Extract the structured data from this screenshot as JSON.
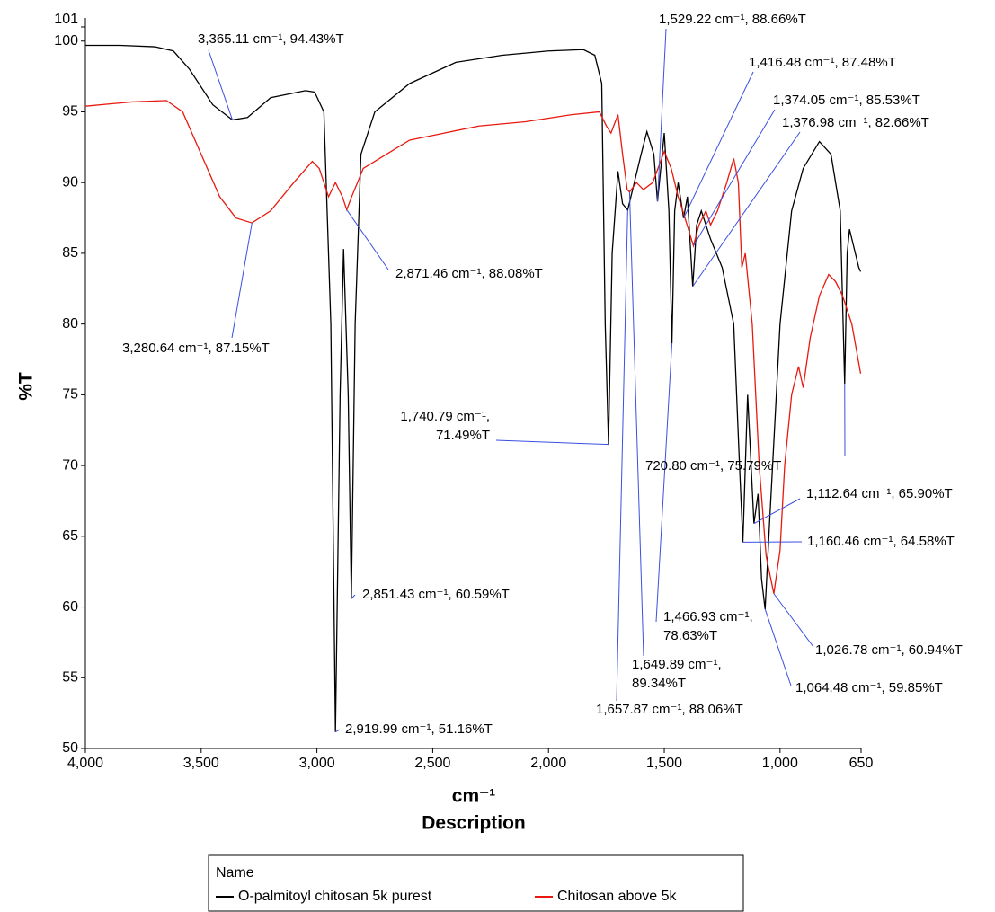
{
  "chart_data": {
    "type": "line",
    "ylabel": "%T",
    "xlabel": "cm⁻¹",
    "xlabel2": "Description",
    "legend_title": "Name",
    "xlim": [
      4000,
      650
    ],
    "ylim": [
      50,
      101
    ],
    "xticks": [
      {
        "value": 4000,
        "label": "4,000"
      },
      {
        "value": 3500,
        "label": "3,500"
      },
      {
        "value": 3000,
        "label": "3,000"
      },
      {
        "value": 2500,
        "label": "2,500"
      },
      {
        "value": 2000,
        "label": "2,000"
      },
      {
        "value": 1500,
        "label": "1,500"
      },
      {
        "value": 1000,
        "label": "1,000"
      },
      650
    ],
    "yticks": [
      50,
      55,
      60,
      65,
      70,
      75,
      80,
      85,
      90,
      95,
      100,
      101
    ],
    "series": [
      {
        "name": "O-palmitoyl chitosan 5k purest",
        "color": "#000000",
        "x": [
          4000,
          3850,
          3700,
          3620,
          3550,
          3450,
          3365.11,
          3300,
          3200,
          3050,
          3010,
          2970,
          2940,
          2919.99,
          2900,
          2885,
          2865,
          2851.43,
          2835,
          2810,
          2750,
          2600,
          2400,
          2200,
          2000,
          1850,
          1800,
          1770,
          1755,
          1740.79,
          1725,
          1700,
          1680,
          1657.87,
          1600,
          1575,
          1545,
          1529.22,
          1500,
          1480,
          1466.93,
          1455,
          1440,
          1416.48,
          1400,
          1376.98,
          1360,
          1340,
          1300,
          1250,
          1200,
          1175,
          1160.46,
          1140,
          1112.64,
          1095,
          1080,
          1064.48,
          1045,
          1000,
          950,
          900,
          830,
          780,
          740,
          720.8,
          710,
          700,
          660,
          652
        ],
        "values": [
          99.7,
          99.7,
          99.6,
          99.3,
          98,
          95.5,
          94.43,
          94.6,
          96,
          96.5,
          96.4,
          95,
          80,
          51.16,
          75,
          85.3,
          75,
          60.59,
          80,
          92,
          95,
          97,
          98.5,
          99,
          99.3,
          99.4,
          99,
          97,
          80,
          71.49,
          85,
          90.8,
          88.5,
          88.06,
          92,
          93.6,
          92,
          88.66,
          93.5,
          88,
          78.63,
          88,
          90,
          87.48,
          89,
          82.66,
          87,
          88,
          86,
          84,
          80,
          70,
          64.58,
          75,
          65.9,
          68,
          62,
          59.85,
          66,
          80,
          88,
          91,
          92.9,
          92,
          88,
          75.79,
          85,
          86.7,
          84,
          83.7
        ]
      },
      {
        "name": "Chitosan above 5k",
        "color": "#e8190e",
        "x": [
          4000,
          3800,
          3650,
          3580,
          3500,
          3420,
          3350,
          3280.64,
          3200,
          3100,
          3020,
          2990,
          2950,
          2920,
          2890,
          2871.46,
          2850,
          2800,
          2700,
          2600,
          2450,
          2300,
          2100,
          1900,
          1780,
          1750,
          1730,
          1700,
          1680,
          1660,
          1649.89,
          1620,
          1590,
          1550,
          1500,
          1470,
          1440,
          1420,
          1374.05,
          1350,
          1320,
          1300,
          1270,
          1230,
          1200,
          1180,
          1165,
          1150,
          1120,
          1090,
          1060,
          1040,
          1026.78,
          1000,
          980,
          950,
          920,
          900,
          870,
          830,
          790,
          760,
          730,
          690,
          652
        ],
        "values": [
          95.4,
          95.7,
          95.8,
          95,
          92,
          89,
          87.5,
          87.15,
          88,
          90,
          91.5,
          91,
          89,
          90,
          89,
          88.08,
          89,
          91,
          92,
          93,
          93.5,
          94,
          94.3,
          94.8,
          95,
          94,
          93.5,
          94.8,
          92,
          89.5,
          89.34,
          90,
          89.5,
          90,
          92.2,
          91,
          89,
          88,
          85.53,
          87,
          88,
          87,
          88,
          90,
          91.7,
          90,
          84,
          85,
          80,
          70,
          63.6,
          62,
          60.94,
          64,
          70,
          75,
          77,
          75.5,
          79,
          82,
          83.5,
          83,
          82,
          80,
          76.5
        ]
      }
    ],
    "annotations": [
      {
        "label": [
          "3,365.11 cm⁻¹, 94.43%T"
        ],
        "x": 3365.11,
        "y": 94.43
      },
      {
        "label": [
          "3,280.64 cm⁻¹, 87.15%T"
        ],
        "x": 3280.64,
        "y": 87.15
      },
      {
        "label": [
          "2,871.46 cm⁻¹, 88.08%T"
        ],
        "x": 2871.46,
        "y": 88.08
      },
      {
        "label": [
          "2,851.43 cm⁻¹, 60.59%T"
        ],
        "x": 2851.43,
        "y": 60.59
      },
      {
        "label": [
          "2,919.99 cm⁻¹, 51.16%T"
        ],
        "x": 2919.99,
        "y": 51.16
      },
      {
        "label": [
          "1,740.79 cm⁻¹,",
          "71.49%T"
        ],
        "x": 1740.79,
        "y": 71.49
      },
      {
        "label": [
          "1,529.22 cm⁻¹, 88.66%T"
        ],
        "x": 1529.22,
        "y": 88.66
      },
      {
        "label": [
          "1,416.48 cm⁻¹, 87.48%T"
        ],
        "x": 1416.48,
        "y": 87.48
      },
      {
        "label": [
          "1,374.05 cm⁻¹, 85.53%T"
        ],
        "x": 1374.05,
        "y": 85.53
      },
      {
        "label": [
          "1,376.98 cm⁻¹, 82.66%T"
        ],
        "x": 1376.98,
        "y": 82.66
      },
      {
        "label": [
          "1,466.93 cm⁻¹,",
          "78.63%T"
        ],
        "x": 1466.93,
        "y": 78.63
      },
      {
        "label": [
          "1,649.89 cm⁻¹,",
          "89.34%T"
        ],
        "x": 1649.89,
        "y": 89.34
      },
      {
        "label": [
          "1,657.87 cm⁻¹, 88.06%T"
        ],
        "x": 1657.87,
        "y": 88.06
      },
      {
        "label": [
          "1,112.64 cm⁻¹, 65.90%T"
        ],
        "x": 1112.64,
        "y": 65.9
      },
      {
        "label": [
          "1,160.46 cm⁻¹, 64.58%T"
        ],
        "x": 1160.46,
        "y": 64.58
      },
      {
        "label": [
          "1,064.48 cm⁻¹, 59.85%T"
        ],
        "x": 1064.48,
        "y": 59.85
      },
      {
        "label": [
          "1,026.78 cm⁻¹, 60.94%T"
        ],
        "x": 1026.78,
        "y": 60.94
      },
      {
        "label": [
          "720.80 cm⁻¹, 75.79%T"
        ],
        "x": 720.8,
        "y": 75.79
      }
    ]
  }
}
